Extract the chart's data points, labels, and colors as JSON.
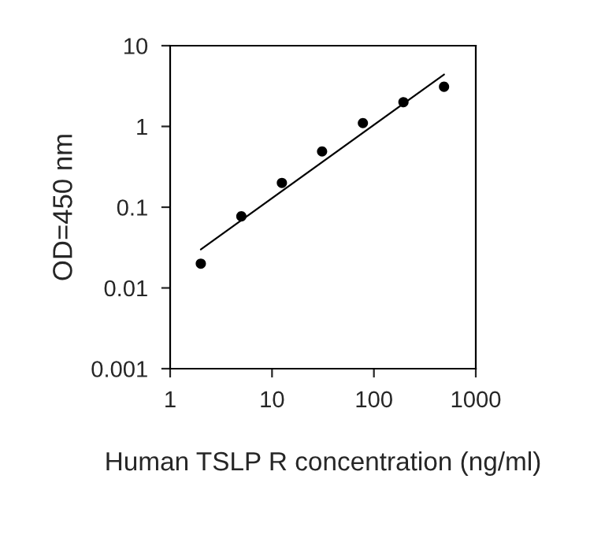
{
  "chart_data": {
    "type": "scatter",
    "xlabel": "Human TSLP R concentration (ng/ml)",
    "ylabel": "OD=450 nm",
    "log": "xy",
    "x": [
      2,
      5,
      12.5,
      31,
      78,
      195,
      488
    ],
    "series": [
      {
        "color": "#000000",
        "marker": "circle",
        "values": [
          0.02,
          0.077,
          0.2,
          0.49,
          1.1,
          2.0,
          3.1
        ]
      },
      {
        "type": "line",
        "marker": "none",
        "color": "#000000",
        "x": [
          2,
          488
        ],
        "values": [
          0.03,
          4.4
        ]
      }
    ],
    "grid": false,
    "xlim": [
      1,
      1000
    ],
    "xticks": [
      1,
      10,
      100,
      1000
    ],
    "ylim": [
      0.001,
      10
    ],
    "yticks": [
      0.001,
      0.01,
      0.1,
      1,
      10
    ]
  }
}
